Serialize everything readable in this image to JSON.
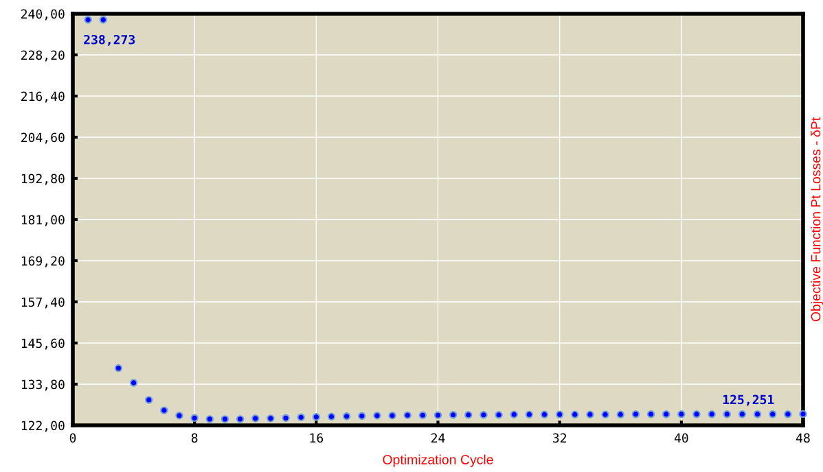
{
  "chart_data": {
    "type": "scatter",
    "xlabel": "Optimization Cycle",
    "ylabel": "Objective Function Pt Losses - δPt",
    "xlim": [
      0,
      48
    ],
    "xticks": [
      0,
      8,
      16,
      24,
      32,
      40,
      48
    ],
    "ylim": [
      122,
      240
    ],
    "yticks": [
      {
        "value": 122,
        "label": "122,00"
      },
      {
        "value": 133.8,
        "label": "133,80"
      },
      {
        "value": 145.6,
        "label": "145,60"
      },
      {
        "value": 157.4,
        "label": "157,40"
      },
      {
        "value": 169.2,
        "label": "169,20"
      },
      {
        "value": 181,
        "label": "181,00"
      },
      {
        "value": 192.8,
        "label": "192,80"
      },
      {
        "value": 204.6,
        "label": "204,60"
      },
      {
        "value": 216.4,
        "label": "216,40"
      },
      {
        "value": 228.2,
        "label": "228,20"
      },
      {
        "value": 240,
        "label": "240,00"
      }
    ],
    "grid": true,
    "marker": "circle",
    "series": [
      {
        "color": "#0000ff",
        "x": [
          1,
          2,
          3,
          4,
          5,
          6,
          7,
          8,
          9,
          10,
          11,
          12,
          13,
          14,
          15,
          16,
          17,
          18,
          19,
          20,
          21,
          22,
          23,
          24,
          25,
          26,
          27,
          28,
          29,
          30,
          31,
          32,
          33,
          34,
          35,
          36,
          37,
          38,
          39,
          40,
          41,
          42,
          43,
          44,
          45,
          46,
          47,
          48
        ],
        "values": [
          238.273,
          238.273,
          138.4,
          134.2,
          129.3,
          126.3,
          124.8,
          124.1,
          123.8,
          123.8,
          123.8,
          124.0,
          124.0,
          124.1,
          124.3,
          124.4,
          124.5,
          124.6,
          124.7,
          124.8,
          124.8,
          124.9,
          124.9,
          124.9,
          125.0,
          125.0,
          125.0,
          125.0,
          125.1,
          125.1,
          125.1,
          125.1,
          125.1,
          125.1,
          125.1,
          125.1,
          125.2,
          125.2,
          125.2,
          125.2,
          125.2,
          125.2,
          125.2,
          125.2,
          125.2,
          125.2,
          125.2,
          125.251
        ]
      }
    ],
    "annotations": [
      {
        "text": "238,273",
        "x": 1,
        "y": 238.273
      },
      {
        "text": "125,251",
        "x": 48,
        "y": 125.251
      }
    ]
  }
}
